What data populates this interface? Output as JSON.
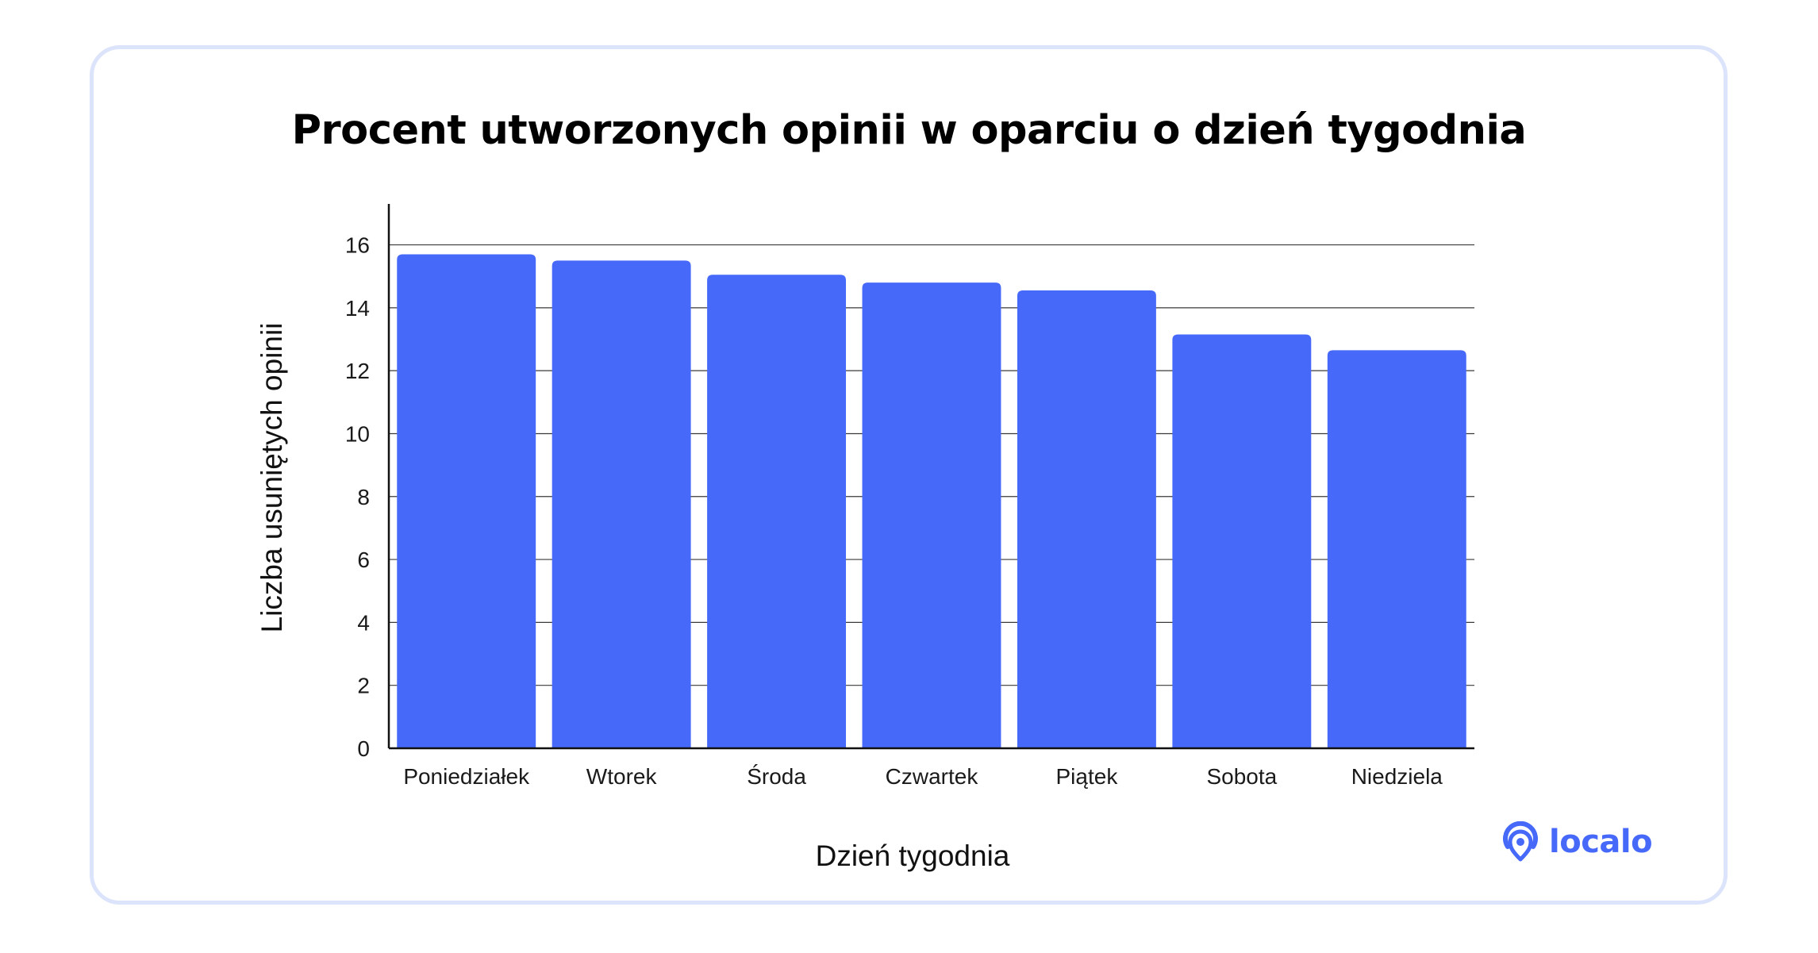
{
  "chart_data": {
    "type": "bar",
    "title": "Procent utworzonych opinii w oparciu o dzień tygodnia",
    "xlabel": "Dzień tygodnia",
    "ylabel": "Liczba usuniętych opinii",
    "categories": [
      "Poniedziałek",
      "Wtorek",
      "Środa",
      "Czwartek",
      "Piątek",
      "Sobota",
      "Niedziela"
    ],
    "values": [
      15.7,
      15.5,
      15.05,
      14.8,
      14.55,
      13.15,
      12.65
    ],
    "ylim": [
      0,
      17.3
    ],
    "yticks": [
      0,
      2,
      4,
      6,
      8,
      10,
      12,
      14,
      16
    ],
    "grid": true,
    "bar_color": "#4669fa"
  },
  "brand": {
    "name": "localo",
    "logo_icon": "location-pin-icon",
    "color": "#4669fa"
  }
}
